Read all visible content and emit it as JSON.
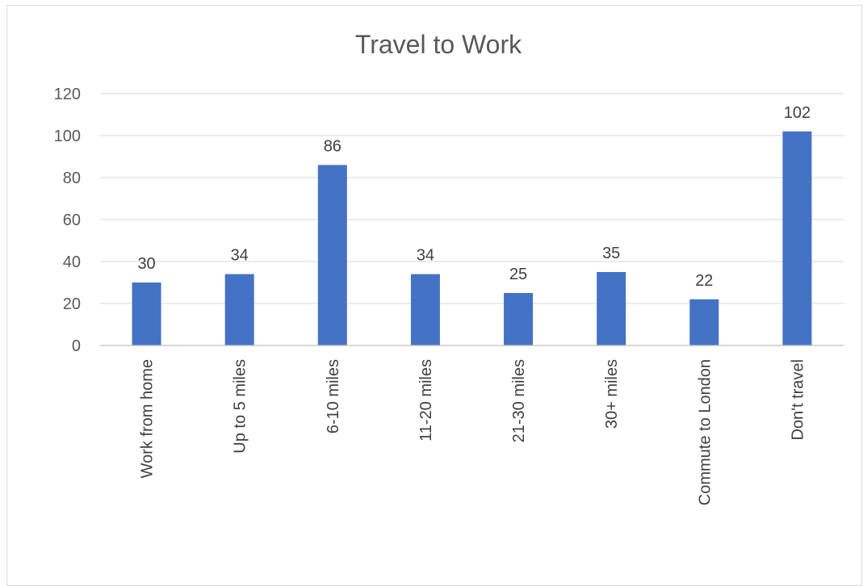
{
  "chart_data": {
    "type": "bar",
    "title": "Travel to Work",
    "xlabel": "",
    "ylabel": "",
    "categories": [
      "Work from home",
      "Up to 5 miles",
      "6-10 miles",
      "11-20 miles",
      "21-30 miles",
      "30+ miles",
      "Commute to London",
      "Don't travel"
    ],
    "values": [
      30,
      34,
      86,
      34,
      25,
      35,
      22,
      102
    ],
    "ylim": [
      0,
      120
    ],
    "yticks": [
      0,
      20,
      40,
      60,
      80,
      100,
      120
    ],
    "grid": true,
    "legend": "none",
    "data_labels": true,
    "bar_color": "#4472c4"
  }
}
